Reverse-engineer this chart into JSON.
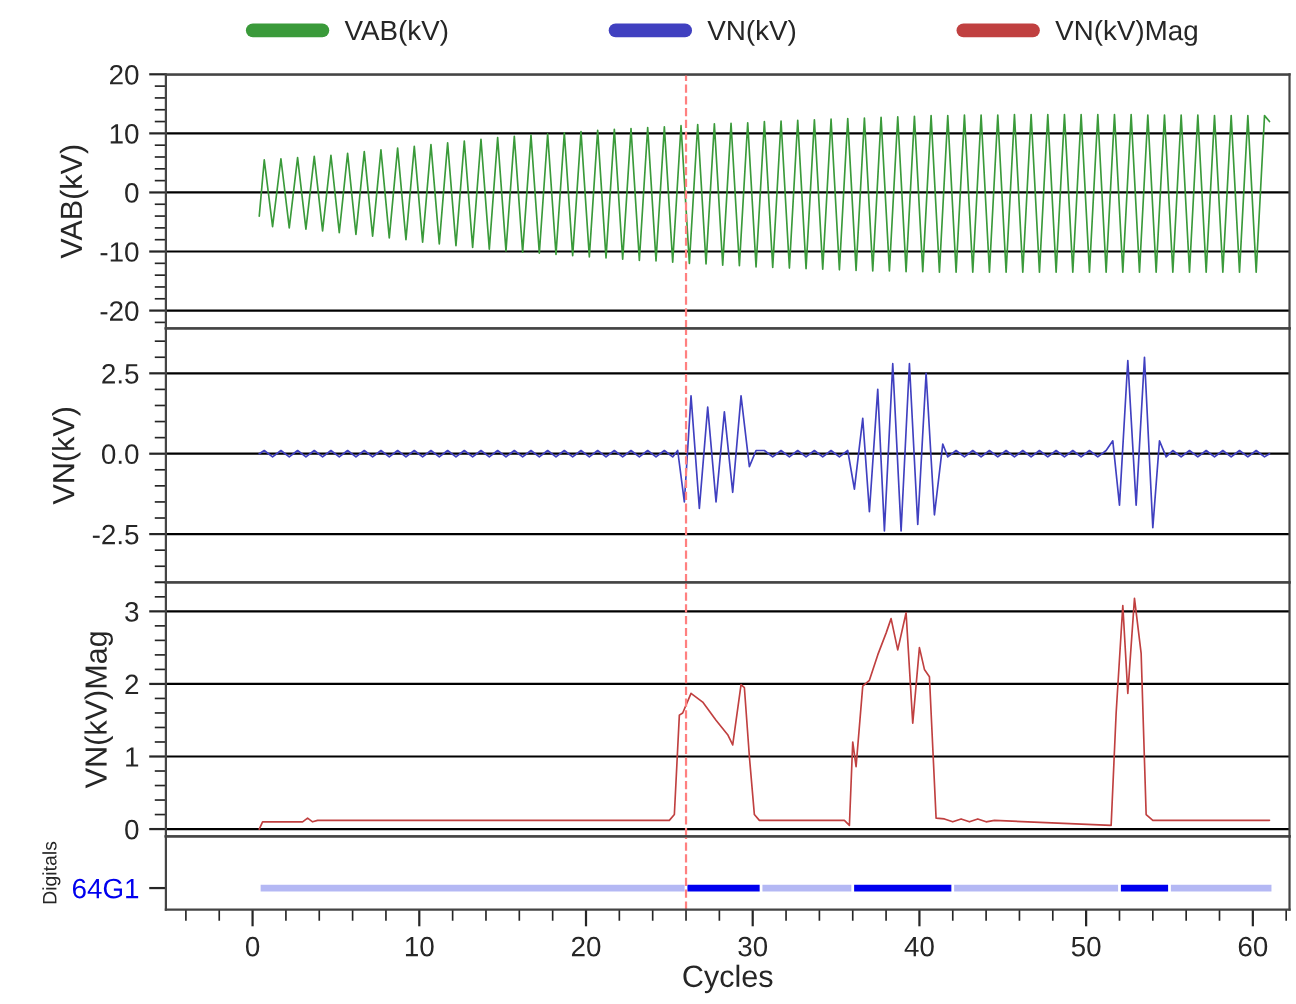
{
  "chart_data": [
    {
      "type": "line",
      "ylabel": "VAB(kV)",
      "xlim": [
        -5.2,
        62.2
      ],
      "ylim": [
        -23,
        20
      ],
      "yticks": [
        -20,
        -10,
        0,
        10,
        20
      ],
      "grid": "y",
      "legend": "top",
      "tick_labels": "y",
      "ref_lines": [
        {
          "axis": "x",
          "value": 26,
          "color": "#ff8080",
          "line_style": "dashed"
        }
      ],
      "series": [
        {
          "name": "VAB(kV)",
          "color": "#3a9a3a",
          "x": [
            0.4,
            0.7,
            1.2,
            1.7,
            2.2,
            2.7,
            3.2,
            3.7,
            4.2,
            4.7,
            5.2,
            5.7,
            6.2,
            6.7,
            7.2,
            7.7,
            8.2,
            8.7,
            9.2,
            9.7,
            10.2,
            10.7,
            11.2,
            11.7,
            12.2,
            12.7,
            13.2,
            13.7,
            14.2,
            14.7,
            15.2,
            15.7,
            16.2,
            16.7,
            17.2,
            17.7,
            18.2,
            18.7,
            19.2,
            19.7,
            20.2,
            20.7,
            21.2,
            21.7,
            22.2,
            22.7,
            23.2,
            23.7,
            24.2,
            24.7,
            25.2,
            25.7,
            26.2,
            26.7,
            27.2,
            27.7,
            28.2,
            28.7,
            29.2,
            29.7,
            30.2,
            30.7,
            31.2,
            31.7,
            32.2,
            32.7,
            33.2,
            33.7,
            34.2,
            34.7,
            35.2,
            35.7,
            36.2,
            36.7,
            37.2,
            37.7,
            38.2,
            38.7,
            39.2,
            39.7,
            40.2,
            40.7,
            41.2,
            41.7,
            42.2,
            42.7,
            43.2,
            43.7,
            44.2,
            44.7,
            45.2,
            45.7,
            46.2,
            46.7,
            47.2,
            47.7,
            48.2,
            48.7,
            49.2,
            49.7,
            50.2,
            50.7,
            51.2,
            51.7,
            52.2,
            52.7,
            53.2,
            53.7,
            54.2,
            54.7,
            55.2,
            55.7,
            56.2,
            56.7,
            57.2,
            57.7,
            58.2,
            58.7,
            59.2,
            59.7,
            60.2,
            60.7,
            61.0
          ],
          "values": [
            -4,
            5.5,
            -5.8,
            5.7,
            -6.0,
            5.9,
            -6.2,
            6.1,
            -6.5,
            6.3,
            -6.8,
            6.6,
            -7.1,
            6.9,
            -7.4,
            7.2,
            -7.7,
            7.5,
            -8.0,
            7.8,
            -8.4,
            8.1,
            -8.7,
            8.4,
            -9.0,
            8.7,
            -9.3,
            9.0,
            -9.6,
            9.3,
            -9.9,
            9.5,
            -10.1,
            9.7,
            -10.3,
            9.9,
            -10.5,
            10.1,
            -10.7,
            10.3,
            -10.9,
            10.5,
            -11.1,
            10.7,
            -11.3,
            10.8,
            -11.5,
            11.0,
            -11.6,
            11.1,
            -11.8,
            11.3,
            -12.0,
            11.5,
            -12.1,
            11.6,
            -12.3,
            11.7,
            -12.4,
            11.8,
            -12.6,
            12.0,
            -12.7,
            12.1,
            -12.8,
            12.2,
            -12.9,
            12.3,
            -13.0,
            12.4,
            -13.1,
            12.5,
            -13.2,
            12.6,
            -13.3,
            12.7,
            -13.3,
            12.8,
            -13.4,
            12.9,
            -13.4,
            13.0,
            -13.5,
            13.0,
            -13.5,
            13.1,
            -13.5,
            13.1,
            -13.5,
            13.1,
            -13.5,
            13.2,
            -13.5,
            13.2,
            -13.5,
            13.2,
            -13.5,
            13.2,
            -13.5,
            13.2,
            -13.5,
            13.2,
            -13.5,
            13.2,
            -13.5,
            13.2,
            -13.5,
            13.1,
            -13.5,
            13.1,
            -13.5,
            13.1,
            -13.5,
            13.1,
            -13.5,
            13.0,
            -13.5,
            13.0,
            -13.5,
            13.0,
            -13.5,
            13.0,
            12
          ]
        }
      ]
    },
    {
      "type": "line",
      "ylabel": "VN(kV)",
      "xlim": [
        -5.2,
        62.2
      ],
      "ylim": [
        -4,
        3.9
      ],
      "yticks": [
        {
          "value": -2.5,
          "label": "-2.5"
        },
        {
          "value": 0,
          "label": "0.0"
        },
        2.5
      ],
      "grid": "y",
      "legend": "top",
      "tick_labels": "y",
      "ref_lines": [
        {
          "axis": "x",
          "value": 26,
          "color": "#ff8080",
          "line_style": "dashed"
        }
      ],
      "series": [
        {
          "name": "VN(kV)",
          "color": "#4040c0",
          "x": [
            0.4,
            0.7,
            1.2,
            1.7,
            2.2,
            2.7,
            3.2,
            3.7,
            4.2,
            4.7,
            5.2,
            5.7,
            6.2,
            6.7,
            7.2,
            7.7,
            8.2,
            8.7,
            9.2,
            9.7,
            10.2,
            10.7,
            11.2,
            11.7,
            12.2,
            12.7,
            13.2,
            13.7,
            14.2,
            14.7,
            15.2,
            15.7,
            16.2,
            16.7,
            17.2,
            17.7,
            18.2,
            18.7,
            19.2,
            19.7,
            20.2,
            20.7,
            21.2,
            21.7,
            22.2,
            22.7,
            23.2,
            23.7,
            24.2,
            24.7,
            25.2,
            25.5,
            25.9,
            26.3,
            26.8,
            27.3,
            27.8,
            28.3,
            28.8,
            29.3,
            29.8,
            30.2,
            30.7,
            31.2,
            31.7,
            32.2,
            32.7,
            33.2,
            33.7,
            34.2,
            34.7,
            35.2,
            35.7,
            36.1,
            36.6,
            37.0,
            37.5,
            37.9,
            38.4,
            38.9,
            39.4,
            39.9,
            40.4,
            40.9,
            41.4,
            41.7,
            42.2,
            42.7,
            43.2,
            43.7,
            44.2,
            44.7,
            45.2,
            45.7,
            46.2,
            46.7,
            47.2,
            47.7,
            48.2,
            48.7,
            49.2,
            49.7,
            50.2,
            50.7,
            51.2,
            51.6,
            52.0,
            52.5,
            53.0,
            53.5,
            54.0,
            54.4,
            54.8,
            55.2,
            55.7,
            56.2,
            56.7,
            57.2,
            57.7,
            58.2,
            58.7,
            59.2,
            59.7,
            60.2,
            60.7,
            61.0
          ],
          "values": [
            0,
            0.1,
            -0.1,
            0.1,
            -0.1,
            0.1,
            -0.1,
            0.1,
            -0.1,
            0.1,
            -0.1,
            0.1,
            -0.1,
            0.1,
            -0.1,
            0.1,
            -0.1,
            0.1,
            -0.1,
            0.1,
            -0.1,
            0.1,
            -0.1,
            0.1,
            -0.1,
            0.1,
            -0.1,
            0.1,
            -0.1,
            0.1,
            -0.1,
            0.1,
            -0.1,
            0.1,
            -0.1,
            0.1,
            -0.1,
            0.1,
            -0.1,
            0.1,
            -0.1,
            0.1,
            -0.1,
            0.1,
            -0.1,
            0.1,
            -0.1,
            0.1,
            -0.1,
            0.1,
            -0.1,
            0.1,
            -1.5,
            1.8,
            -1.7,
            1.45,
            -1.5,
            1.3,
            -1.2,
            1.8,
            -0.4,
            0.1,
            0.1,
            -0.1,
            0.1,
            -0.1,
            0.1,
            -0.1,
            0.1,
            -0.1,
            0.1,
            -0.1,
            0.1,
            -1.1,
            1.1,
            -1.8,
            2.0,
            -2.4,
            2.8,
            -2.4,
            2.8,
            -2.2,
            2.5,
            -1.9,
            0.3,
            -0.1,
            0.1,
            -0.1,
            0.1,
            -0.1,
            0.1,
            -0.1,
            0.1,
            -0.1,
            0.1,
            -0.1,
            0.1,
            -0.1,
            0.1,
            -0.1,
            0.1,
            -0.1,
            0.1,
            -0.1,
            0.1,
            0.4,
            -1.6,
            2.9,
            -1.6,
            3.0,
            -2.3,
            0.4,
            -0.1,
            0.1,
            -0.1,
            0.1,
            -0.1,
            0.1,
            -0.1,
            0.1,
            -0.1,
            0.1,
            -0.1,
            0.1,
            -0.1,
            0
          ]
        }
      ]
    },
    {
      "type": "line",
      "ylabel": "VN(kV)Mag",
      "xlim": [
        -5.2,
        62.2
      ],
      "ylim": [
        -0.1,
        3.4
      ],
      "yticks": [
        0,
        1,
        2,
        3
      ],
      "grid": "y",
      "legend": "top",
      "tick_labels": "y",
      "ref_lines": [
        {
          "axis": "x",
          "value": 26,
          "color": "#ff8080",
          "line_style": "dashed"
        }
      ],
      "series": [
        {
          "name": "VN(kV)Mag",
          "color": "#c04040",
          "x": [
            0.4,
            0.6,
            3.0,
            3.3,
            3.6,
            3.9,
            25.0,
            25.3,
            25.6,
            25.8,
            26.3,
            27.0,
            27.8,
            28.5,
            28.8,
            29.3,
            29.5,
            29.8,
            30.1,
            30.4,
            35.5,
            35.8,
            36.0,
            36.2,
            36.6,
            37.0,
            37.5,
            38.0,
            38.3,
            38.7,
            39.2,
            39.6,
            40.0,
            40.3,
            40.6,
            41.0,
            41.5,
            42.0,
            42.5,
            43.0,
            43.5,
            44.0,
            44.5,
            51.5,
            51.8,
            52.2,
            52.5,
            52.9,
            53.3,
            53.6,
            54.0,
            61.0
          ],
          "values": [
            0.0,
            0.1,
            0.1,
            0.15,
            0.1,
            0.12,
            0.12,
            0.2,
            1.57,
            1.6,
            1.87,
            1.75,
            1.5,
            1.3,
            1.16,
            1.99,
            1.95,
            1.0,
            0.2,
            0.12,
            0.12,
            0.05,
            1.2,
            0.86,
            1.97,
            2.05,
            2.4,
            2.7,
            2.9,
            2.47,
            2.98,
            1.46,
            2.5,
            2.2,
            2.1,
            0.15,
            0.14,
            0.1,
            0.14,
            0.1,
            0.14,
            0.1,
            0.12,
            0.05,
            1.6,
            3.08,
            1.87,
            3.18,
            2.42,
            0.2,
            0.12,
            0.12
          ]
        }
      ]
    },
    {
      "type": "bar",
      "orientation": "horizontal",
      "ylabel": "Digitals",
      "xlabel": "Cycles",
      "categories": [
        "64G1"
      ],
      "xlim": [
        -5.2,
        62.2
      ],
      "xticks": [
        0,
        10,
        20,
        30,
        40,
        50,
        60
      ],
      "ref_lines": [
        {
          "axis": "x",
          "value": 26,
          "color": "#ff8080",
          "line_style": "dashed"
        }
      ],
      "series": [
        {
          "color": "#b4b8f4",
          "values": [
            60.8
          ],
          "base": [
            0.4
          ]
        },
        {
          "color": "#0000ee",
          "values": [
            4.5
          ],
          "base": [
            26
          ]
        },
        {
          "color": "#0000ee",
          "values": [
            6
          ],
          "base": [
            36
          ]
        },
        {
          "color": "#0000ee",
          "values": [
            3
          ],
          "base": [
            52
          ]
        }
      ]
    }
  ]
}
